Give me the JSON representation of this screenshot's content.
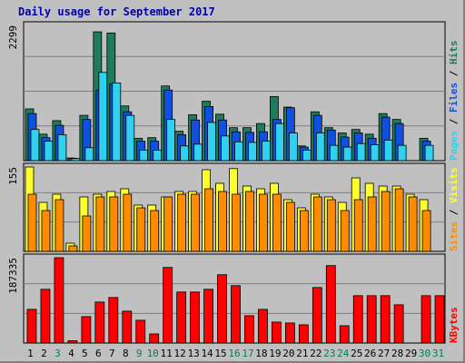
{
  "title": "Daily usage for September 2017",
  "colors": {
    "background": "#c0c0c0",
    "grid": "#808080",
    "hits": "#1e7c5a",
    "files": "#1050e0",
    "pages": "#30d0f0",
    "visits": "#ffff30",
    "sites": "#ff8c00",
    "kbytes": "#ff0000",
    "weekday_label": "#000000",
    "weekend_label": "#00804f"
  },
  "chart_data": [
    {
      "type": "bar",
      "name": "hits-files-pages",
      "categories": [
        "1",
        "2",
        "3",
        "4",
        "5",
        "6",
        "7",
        "8",
        "9",
        "10",
        "11",
        "12",
        "13",
        "14",
        "15",
        "16",
        "17",
        "18",
        "19",
        "20",
        "21",
        "22",
        "23",
        "24",
        "25",
        "26",
        "27",
        "28",
        "29",
        "30",
        "31"
      ],
      "weekend": [
        false,
        false,
        true,
        false,
        false,
        false,
        false,
        false,
        true,
        true,
        false,
        false,
        false,
        false,
        false,
        true,
        true,
        false,
        false,
        false,
        false,
        false,
        true,
        true,
        false,
        false,
        false,
        false,
        false,
        true,
        true
      ],
      "ymax": 2299,
      "ylabel": "2299",
      "side_label": [
        "Pages",
        "Files",
        "Hits"
      ],
      "series": [
        {
          "name": "Hits",
          "values": [
            880,
            450,
            680,
            45,
            770,
            2190,
            2170,
            930,
            380,
            390,
            1270,
            500,
            780,
            1010,
            790,
            560,
            560,
            630,
            1090,
            910,
            250,
            830,
            560,
            470,
            530,
            450,
            800,
            700,
            0,
            380,
            0
          ]
        },
        {
          "name": "Files",
          "values": [
            800,
            390,
            600,
            40,
            700,
            1200,
            1300,
            830,
            330,
            330,
            1200,
            440,
            690,
            920,
            690,
            490,
            480,
            490,
            700,
            900,
            230,
            770,
            520,
            400,
            470,
            380,
            740,
            630,
            0,
            330,
            0
          ]
        },
        {
          "name": "Pages",
          "values": [
            530,
            330,
            440,
            35,
            220,
            1500,
            1320,
            770,
            180,
            180,
            700,
            250,
            280,
            650,
            420,
            320,
            310,
            330,
            630,
            470,
            180,
            470,
            260,
            230,
            290,
            270,
            350,
            260,
            0,
            260,
            0
          ]
        }
      ]
    },
    {
      "type": "bar",
      "name": "visits-sites",
      "categories": [
        "1",
        "2",
        "3",
        "4",
        "5",
        "6",
        "7",
        "8",
        "9",
        "10",
        "11",
        "12",
        "13",
        "14",
        "15",
        "16",
        "17",
        "18",
        "19",
        "20",
        "21",
        "22",
        "23",
        "24",
        "25",
        "26",
        "27",
        "28",
        "29",
        "30",
        "31"
      ],
      "ymax": 155,
      "ylabel": "155",
      "side_label": [
        "Sites",
        "Visits"
      ],
      "series": [
        {
          "name": "Visits",
          "values": [
            155,
            90,
            105,
            15,
            100,
            105,
            110,
            115,
            85,
            85,
            100,
            110,
            110,
            150,
            125,
            152,
            120,
            115,
            125,
            95,
            80,
            105,
            100,
            90,
            135,
            125,
            120,
            120,
            105,
            95,
            0
          ]
        },
        {
          "name": "Sites",
          "values": [
            105,
            75,
            95,
            10,
            65,
            100,
            100,
            105,
            80,
            75,
            100,
            105,
            105,
            115,
            110,
            105,
            110,
            105,
            105,
            90,
            75,
            100,
            95,
            75,
            95,
            100,
            110,
            115,
            100,
            75,
            0
          ]
        }
      ]
    },
    {
      "type": "bar",
      "name": "kbytes",
      "categories": [
        "1",
        "2",
        "3",
        "4",
        "5",
        "6",
        "7",
        "8",
        "9",
        "10",
        "11",
        "12",
        "13",
        "14",
        "15",
        "16",
        "17",
        "18",
        "19",
        "20",
        "21",
        "22",
        "23",
        "24",
        "25",
        "26",
        "27",
        "28",
        "29",
        "30",
        "31"
      ],
      "ymax": 187335,
      "ylabel": "187335",
      "side_label": [
        "KBytes"
      ],
      "series": [
        {
          "name": "KBytes",
          "values": [
            74000,
            118000,
            187335,
            5000,
            58000,
            90000,
            100000,
            70000,
            50000,
            20000,
            166000,
            112000,
            112000,
            118000,
            150000,
            126000,
            60000,
            74000,
            46000,
            44000,
            40000,
            122000,
            170000,
            38000,
            104000,
            104000,
            104000,
            84000,
            0,
            104000,
            104000
          ]
        }
      ]
    }
  ]
}
